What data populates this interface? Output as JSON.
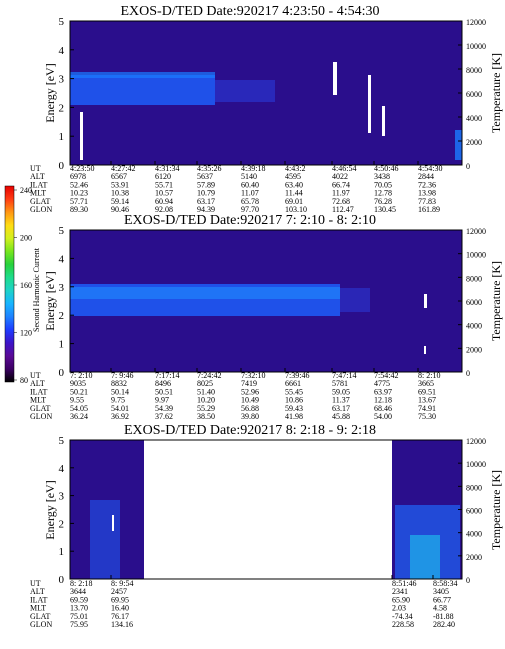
{
  "chart_data": [
    {
      "type": "heatmap",
      "title": "EXOS-D/TED   Date:920217  4:23:50 - 4:54:30",
      "ylabel": "Energy [eV]",
      "y2label": "Temperature [K]",
      "ylim": [
        0,
        5
      ],
      "y2lim": [
        0,
        12000
      ],
      "yticks": [
        "0",
        "1",
        "2",
        "3",
        "4",
        "5"
      ],
      "y2ticks": [
        "0",
        "2000",
        "4000",
        "6000",
        "8000",
        "10000",
        "12000"
      ],
      "orbit_labels": [
        "UT",
        "ALT",
        "ILAT",
        "MLT",
        "GLAT",
        "GLON"
      ],
      "orbit_columns": [
        [
          "4:23:50",
          "6978",
          "52.46",
          "10.23",
          "57.71",
          "89.30"
        ],
        [
          "4:27:42",
          "6567",
          "53.91",
          "10.38",
          "59.14",
          "90.46"
        ],
        [
          "4:31:34",
          "6120",
          "55.71",
          "10.57",
          "60.94",
          "92.08"
        ],
        [
          "4:35:26",
          "5637",
          "57.89",
          "10.79",
          "63.17",
          "94.39"
        ],
        [
          "4:39:18",
          "5140",
          "60.40",
          "11.07",
          "65.78",
          "97.70"
        ],
        [
          "4:43:2",
          "4595",
          "63.40",
          "11.44",
          "69.01",
          "103.10"
        ],
        [
          "4:46:54",
          "4022",
          "66.74",
          "11.97",
          "72.68",
          "112.47"
        ],
        [
          "4:50:46",
          "3438",
          "70.05",
          "12.78",
          "76.28",
          "130.45"
        ],
        [
          "4:54:30",
          "2844",
          "72.36",
          "13.98",
          "77.83",
          "161.89"
        ]
      ]
    },
    {
      "type": "heatmap",
      "title": "EXOS-D/TED   Date:920217  7: 2:10 - 8: 2:10",
      "ylabel": "Energy [eV]",
      "y2label": "Temperature [K]",
      "ylim": [
        0,
        5
      ],
      "y2lim": [
        0,
        12000
      ],
      "yticks": [
        "0",
        "1",
        "2",
        "3",
        "4",
        "5"
      ],
      "y2ticks": [
        "0",
        "2000",
        "4000",
        "6000",
        "8000",
        "10000",
        "12000"
      ],
      "orbit_labels": [
        "UT",
        "ALT",
        "ILAT",
        "MLT",
        "GLAT",
        "GLON"
      ],
      "orbit_columns": [
        [
          "7: 2:10",
          "9035",
          "50.21",
          "9.55",
          "54.05",
          "36.24"
        ],
        [
          "7: 9:46",
          "8832",
          "50.14",
          "9.75",
          "54.01",
          "36.92"
        ],
        [
          "7:17:14",
          "8496",
          "50.51",
          "9.97",
          "54.39",
          "37.62"
        ],
        [
          "7:24:42",
          "8025",
          "51.40",
          "10.20",
          "55.29",
          "38.50"
        ],
        [
          "7:32:10",
          "7419",
          "52.96",
          "10.49",
          "56.88",
          "39.80"
        ],
        [
          "7:39:46",
          "6661",
          "55.45",
          "10.86",
          "59.43",
          "41.98"
        ],
        [
          "7:47:14",
          "5781",
          "59.05",
          "11.37",
          "63.17",
          "45.88"
        ],
        [
          "7:54:42",
          "4775",
          "63.97",
          "12.18",
          "68.46",
          "54.00"
        ],
        [
          "8: 2:10",
          "3665",
          "69.51",
          "13.67",
          "74.91",
          "75.30"
        ]
      ]
    },
    {
      "type": "heatmap",
      "title": "EXOS-D/TED   Date:920217  8: 2:18 - 9: 2:18",
      "ylabel": "Energy [eV]",
      "y2label": "Temperature [K]",
      "ylim": [
        0,
        5
      ],
      "y2lim": [
        0,
        12000
      ],
      "yticks": [
        "0",
        "1",
        "2",
        "3",
        "4",
        "5"
      ],
      "y2ticks": [
        "0",
        "2000",
        "4000",
        "6000",
        "8000",
        "10000",
        "12000"
      ],
      "orbit_labels": [
        "UT",
        "ALT",
        "ILAT",
        "MLT",
        "GLAT",
        "GLON"
      ],
      "orbit_columns": [
        [
          "8: 2:18",
          "3644",
          "69.59",
          "13.70",
          "75.01",
          "75.95"
        ],
        [
          "8: 9:54",
          "2457",
          "69.95",
          "16.40",
          "76.17",
          "134.16"
        ],
        [
          "8:51:46",
          "2341",
          "65.90",
          "2.03",
          "-74.34",
          "228.58"
        ],
        [
          "8:58:34",
          "3405",
          "66.77",
          "4.58",
          "-81.88",
          "282.40"
        ]
      ]
    }
  ],
  "colorbar": {
    "label": "Second Harmonic Current",
    "ticks": [
      "80",
      "120",
      "160",
      "200",
      "240"
    ],
    "tick_top": "240",
    "tick_bottom": "80",
    "colors": [
      "#000000",
      "#3c0064",
      "#5a0a96",
      "#3c14c8",
      "#1e3cff",
      "#1e82ff",
      "#18b4ff",
      "#1ed2c8",
      "#1edc8c",
      "#28d23c",
      "#78e61e",
      "#d2f01e",
      "#ffdc14",
      "#ff9614",
      "#ff3c14",
      "#e60000"
    ]
  }
}
